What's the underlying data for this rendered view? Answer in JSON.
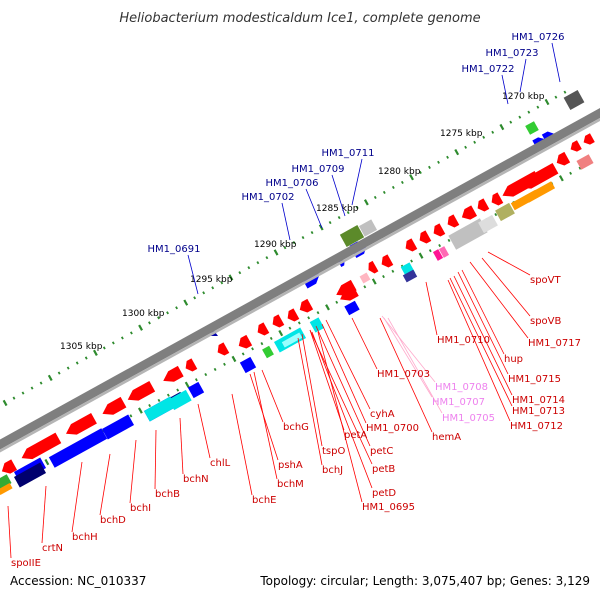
{
  "title": "Heliobacterium modesticaldum Ice1, complete genome",
  "footer": {
    "accession": "Accession: NC_010337",
    "topology": "Topology: circular; Length: 3,075,407 bp; Genes: 3,129"
  },
  "colors": {
    "backbone": "#808080",
    "upper_label": "#00008b",
    "lower_label": "#cc0000",
    "pink_label": "#ee82ee",
    "tick": "#2e8b2e"
  },
  "kbp_ticks": [
    "1270 kbp",
    "1275 kbp",
    "1280 kbp",
    "1285 kbp",
    "1290 kbp",
    "1295 kbp",
    "1300 kbp",
    "1305 kbp"
  ],
  "upper_labels": [
    "HM1_0726",
    "HM1_0723",
    "HM1_0722",
    "HM1_0711",
    "HM1_0709",
    "HM1_0706",
    "HM1_0702",
    "HM1_0691"
  ],
  "lower_labels": [
    "spoVT",
    "spoVB",
    "HM1_0717",
    "HM1_0710",
    "hup",
    "HM1_0715",
    "HM1_0714",
    "HM1_0713",
    "HM1_0712",
    "HM1_0703",
    "hemA",
    "cyhA",
    "HM1_0700",
    "petC",
    "petA",
    "bchG",
    "tspO",
    "petB",
    "bchJ",
    "petD",
    "HM1_0695",
    "pshA",
    "chlL",
    "bchM",
    "bchN",
    "bchE",
    "bchB",
    "bchI",
    "bchD",
    "bchH",
    "crtN",
    "spoIIE"
  ],
  "pink_labels": [
    "HM1_0708",
    "HM1_0707",
    "HM1_0705"
  ]
}
